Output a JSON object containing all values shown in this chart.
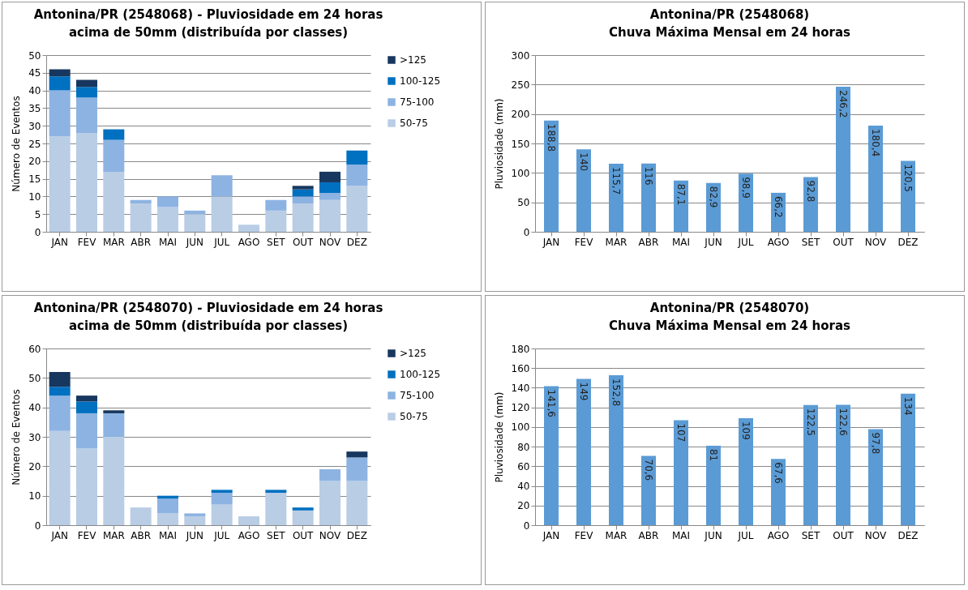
{
  "chart_data": [
    {
      "type": "bar",
      "title": "Antonina/PR (2548068) - Pluviosidade em 24 horas\nacima de 50mm (distribuída por classes)",
      "ylabel": "Número de Eventos",
      "categories": [
        "JAN",
        "FEV",
        "MAR",
        "ABR",
        "MAI",
        "JUN",
        "JUL",
        "AGO",
        "SET",
        "OUT",
        "NOV",
        "DEZ"
      ],
      "stacked": true,
      "series": [
        {
          "name": "50-75",
          "color": "#b9cde5",
          "values": [
            27,
            28,
            17,
            8,
            7,
            5,
            10,
            2,
            6,
            8,
            9,
            13
          ]
        },
        {
          "name": "75-100",
          "color": "#8db3e2",
          "values": [
            13,
            10,
            9,
            1,
            3,
            1,
            6,
            0,
            3,
            2,
            2,
            6
          ]
        },
        {
          "name": "100-125",
          "color": "#0070c0",
          "values": [
            4,
            3,
            3,
            0,
            0,
            0,
            0,
            0,
            0,
            2,
            3,
            4
          ]
        },
        {
          "name": ">125",
          "color": "#17375e",
          "values": [
            2,
            2,
            0,
            0,
            0,
            0,
            0,
            0,
            0,
            1,
            3,
            0
          ]
        }
      ],
      "ylim": [
        0,
        50
      ],
      "yticks": [
        0,
        5,
        10,
        15,
        20,
        25,
        30,
        35,
        40,
        45,
        50
      ],
      "grid": "y",
      "legend": "right"
    },
    {
      "type": "bar",
      "title": "Antonina/PR (2548068)\nChuva Máxima Mensal em 24 horas",
      "ylabel": "Pluviosidade (mm)",
      "categories": [
        "JAN",
        "FEV",
        "MAR",
        "ABR",
        "MAI",
        "JUN",
        "JUL",
        "AGO",
        "SET",
        "OUT",
        "NOV",
        "DEZ"
      ],
      "values": [
        188.8,
        140,
        115.7,
        116,
        87.1,
        82.9,
        98.9,
        66.2,
        92.8,
        246.2,
        180.4,
        120.5
      ],
      "value_labels": [
        "188,8",
        "140",
        "115,7",
        "116",
        "87,1",
        "82,9",
        "98,9",
        "66,2",
        "92,8",
        "246,2",
        "180,4",
        "120,5"
      ],
      "color": "#5b9bd5",
      "ylim": [
        0,
        300
      ],
      "yticks": [
        0,
        50,
        100,
        150,
        200,
        250,
        300
      ],
      "grid": "y"
    },
    {
      "type": "bar",
      "title": "Antonina/PR (2548070) - Pluviosidade em 24 horas\nacima de 50mm (distribuída por classes)",
      "ylabel": "Número de Eventos",
      "categories": [
        "JAN",
        "FEV",
        "MAR",
        "ABR",
        "MAI",
        "JUN",
        "JUL",
        "AGO",
        "SET",
        "OUT",
        "NOV",
        "DEZ"
      ],
      "stacked": true,
      "series": [
        {
          "name": "50-75",
          "color": "#b9cde5",
          "values": [
            32,
            26,
            30,
            6,
            4,
            3,
            7,
            3,
            11,
            5,
            15,
            15
          ]
        },
        {
          "name": "75-100",
          "color": "#8db3e2",
          "values": [
            12,
            12,
            8,
            0,
            5,
            1,
            4,
            0,
            0,
            0,
            4,
            8
          ]
        },
        {
          "name": "100-125",
          "color": "#0070c0",
          "values": [
            3,
            4,
            0,
            0,
            1,
            0,
            1,
            0,
            1,
            1,
            0,
            0
          ]
        },
        {
          "name": ">125",
          "color": "#17375e",
          "values": [
            5,
            2,
            1,
            0,
            0,
            0,
            0,
            0,
            0,
            0,
            0,
            2
          ]
        }
      ],
      "ylim": [
        0,
        60
      ],
      "yticks": [
        0,
        10,
        20,
        30,
        40,
        50,
        60
      ],
      "grid": "y",
      "legend": "right"
    },
    {
      "type": "bar",
      "title": "Antonina/PR (2548070)\nChuva Máxima Mensal em 24 horas",
      "ylabel": "Pluviosidade (mm)",
      "categories": [
        "JAN",
        "FEV",
        "MAR",
        "ABR",
        "MAI",
        "JUN",
        "JUL",
        "AGO",
        "SET",
        "OUT",
        "NOV",
        "DEZ"
      ],
      "values": [
        141.6,
        149,
        152.8,
        70.6,
        107,
        81,
        109,
        67.6,
        122.5,
        122.6,
        97.8,
        134
      ],
      "value_labels": [
        "141,6",
        "149",
        "152,8",
        "70,6",
        "107",
        "81",
        "109",
        "67,6",
        "122,5",
        "122,6",
        "97,8",
        "134"
      ],
      "color": "#5b9bd5",
      "ylim": [
        0,
        180
      ],
      "yticks": [
        0,
        20,
        40,
        60,
        80,
        100,
        120,
        140,
        160,
        180
      ],
      "grid": "y"
    }
  ]
}
